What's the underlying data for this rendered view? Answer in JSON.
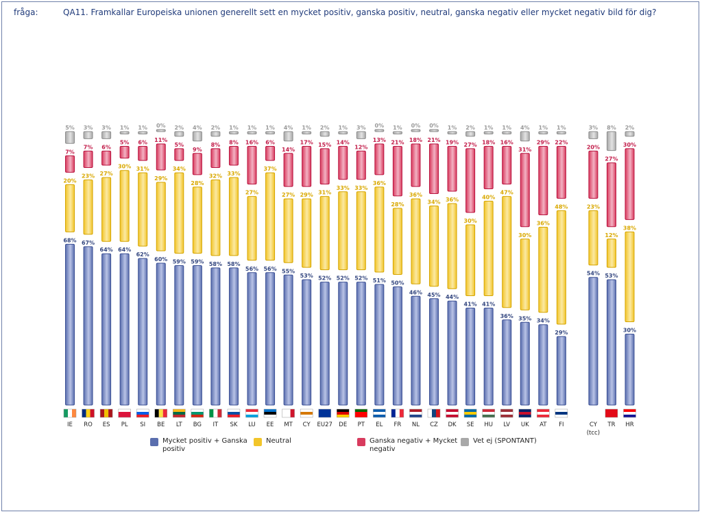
{
  "question": {
    "label": "fråga:",
    "text": "QA11. Framkallar Europeiska unionen generellt sett en mycket positiv, ganska positiv, neutral, ganska negativ eller mycket negativ bild för dig?"
  },
  "colors": {
    "positive": "#5a6eae",
    "neutral": "#f2c52a",
    "negative": "#d83b5e",
    "dontknow": "#a8a8a8"
  },
  "legend": {
    "positive": "Mycket positiv + Ganska positiv",
    "neutral": "Neutral",
    "negative": "Ganska negativ + Mycket negativ",
    "dontknow": "Vet ej (SPONTANT)"
  },
  "chart_data": {
    "type": "bar",
    "stacked": true,
    "categories": [
      "IE",
      "RO",
      "ES",
      "PL",
      "SI",
      "BE",
      "LT",
      "BG",
      "IT",
      "SK",
      "LU",
      "EE",
      "MT",
      "CY",
      "EU27",
      "DE",
      "PT",
      "EL",
      "FR",
      "NL",
      "CZ",
      "DK",
      "SE",
      "HU",
      "LV",
      "UK",
      "AT",
      "FI",
      "CY (tcc)",
      "TR",
      "HR"
    ],
    "series": [
      {
        "name": "Mycket positiv + Ganska positiv",
        "values": [
          68,
          67,
          64,
          64,
          62,
          60,
          59,
          59,
          58,
          58,
          56,
          56,
          55,
          53,
          52,
          52,
          52,
          51,
          50,
          46,
          45,
          44,
          41,
          41,
          36,
          35,
          34,
          29,
          54,
          53,
          30
        ]
      },
      {
        "name": "Neutral",
        "values": [
          20,
          23,
          27,
          30,
          31,
          29,
          34,
          28,
          32,
          33,
          27,
          37,
          27,
          29,
          31,
          33,
          33,
          36,
          28,
          36,
          34,
          36,
          30,
          40,
          47,
          30,
          36,
          48,
          23,
          12,
          38
        ]
      },
      {
        "name": "Ganska negativ + Mycket negativ",
        "values": [
          7,
          7,
          6,
          5,
          6,
          11,
          5,
          9,
          8,
          8,
          16,
          6,
          14,
          17,
          15,
          14,
          12,
          13,
          21,
          18,
          21,
          19,
          27,
          18,
          16,
          31,
          29,
          22,
          20,
          27,
          30
        ]
      },
      {
        "name": "Vet ej (SPONTANT)",
        "values": [
          5,
          3,
          3,
          1,
          1,
          0,
          2,
          4,
          2,
          1,
          1,
          1,
          4,
          1,
          2,
          1,
          3,
          0,
          1,
          0,
          0,
          1,
          2,
          1,
          1,
          4,
          1,
          1,
          3,
          8,
          2
        ]
      }
    ],
    "value_suffix": "%"
  }
}
